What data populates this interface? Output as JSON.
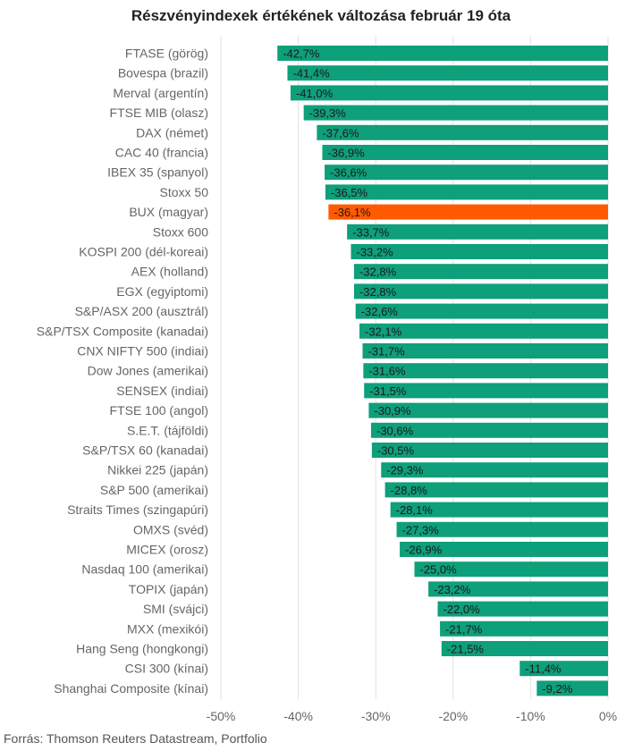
{
  "chart_data": {
    "type": "bar",
    "orientation": "horizontal",
    "title": "Részvényindexek értékének változása február 19 óta",
    "categories": [
      "FTASE (görög)",
      "Bovespa (brazil)",
      "Merval (argentín)",
      "FTSE MIB (olasz)",
      "DAX (német)",
      "CAC 40 (francia)",
      "IBEX 35 (spanyol)",
      "Stoxx 50",
      "BUX (magyar)",
      "Stoxx 600",
      "KOSPI 200 (dél-koreai)",
      "AEX (holland)",
      "EGX (egyiptomi)",
      "S&P/ASX 200 (ausztrál)",
      "S&P/TSX Composite (kanadai)",
      "CNX NIFTY 500 (indiai)",
      "Dow Jones (amerikai)",
      "SENSEX (indiai)",
      "FTSE 100 (angol)",
      "S.E.T. (tájföldi)",
      "S&P/TSX 60 (kanadai)",
      "Nikkei 225 (japán)",
      "S&P 500 (amerikai)",
      "Straits Times (szingapúri)",
      "OMXS (svéd)",
      "MICEX (orosz)",
      "Nasdaq 100 (amerikai)",
      "TOPIX (japán)",
      "SMI (svájci)",
      "MXX (mexikói)",
      "Hang Seng (hongkongi)",
      "CSI 300 (kínai)",
      "Shanghai Composite (kínai)"
    ],
    "values": [
      -42.7,
      -41.4,
      -41.0,
      -39.3,
      -37.6,
      -36.9,
      -36.6,
      -36.5,
      -36.1,
      -33.7,
      -33.2,
      -32.8,
      -32.8,
      -32.6,
      -32.1,
      -31.7,
      -31.6,
      -31.5,
      -30.9,
      -30.6,
      -30.5,
      -29.3,
      -28.8,
      -28.1,
      -27.3,
      -26.9,
      -25.0,
      -23.2,
      -22.0,
      -21.7,
      -21.5,
      -11.4,
      -9.2
    ],
    "value_labels": [
      "-42,7%",
      "-41,4%",
      "-41,0%",
      "-39,3%",
      "-37,6%",
      "-36,9%",
      "-36,6%",
      "-36,5%",
      "-36,1%",
      "-33,7%",
      "-33,2%",
      "-32,8%",
      "-32,8%",
      "-32,6%",
      "-32,1%",
      "-31,7%",
      "-31,6%",
      "-31,5%",
      "-30,9%",
      "-30,6%",
      "-30,5%",
      "-29,3%",
      "-28,8%",
      "-28,1%",
      "-27,3%",
      "-26,9%",
      "-25,0%",
      "-23,2%",
      "-22,0%",
      "-21,7%",
      "-21,5%",
      "-11,4%",
      "-9,2%"
    ],
    "highlight_index": 8,
    "colors": {
      "bar": "#0e9f7b",
      "highlight": "#ff5a00",
      "grid": "#e2e2e2"
    },
    "xlim": [
      -50,
      0
    ],
    "x_ticks": [
      -50,
      -40,
      -30,
      -20,
      -10,
      0
    ],
    "x_tick_labels": [
      "-50%",
      "-40%",
      "-30%",
      "-20%",
      "-10%",
      "0%"
    ],
    "grid": true,
    "xlabel": "",
    "ylabel": ""
  },
  "source": "Forrás: Thomson Reuters Datastream, Portfolio"
}
